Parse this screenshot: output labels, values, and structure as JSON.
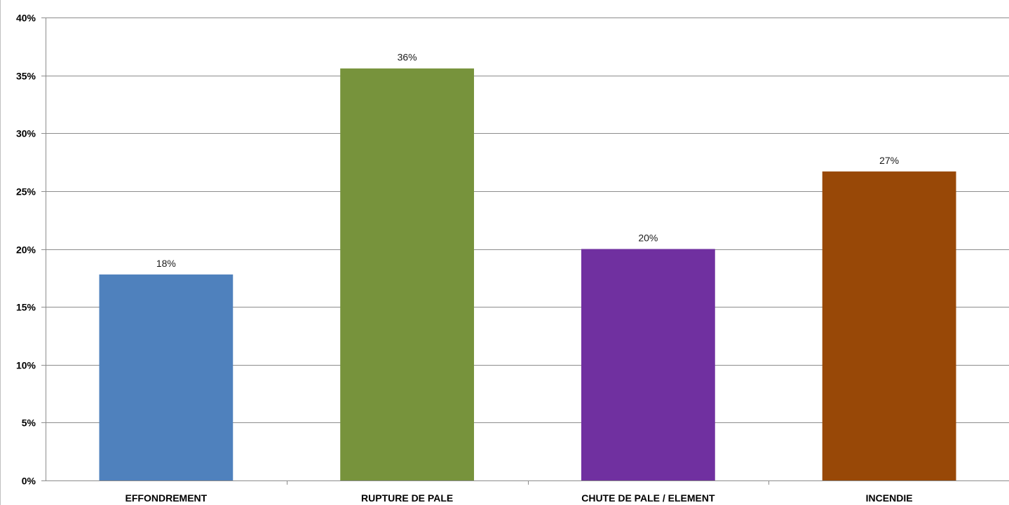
{
  "chart_data": {
    "type": "bar",
    "categories": [
      "EFFONDREMENT",
      "RUPTURE DE PALE",
      "CHUTE DE PALE / ELEMENT",
      "INCENDIE"
    ],
    "values": [
      17.8,
      35.6,
      20.0,
      26.7
    ],
    "data_labels": [
      "18%",
      "36%",
      "20%",
      "27%"
    ],
    "colors": [
      "#4f81bd",
      "#77933c",
      "#7030a0",
      "#984807"
    ],
    "ylim": [
      0,
      40
    ],
    "y_ticks": [
      0,
      5,
      10,
      15,
      20,
      25,
      30,
      35,
      40
    ],
    "y_tick_labels": [
      "0%",
      "5%",
      "10%",
      "15%",
      "20%",
      "25%",
      "30%",
      "35%",
      "40%"
    ],
    "grid": true,
    "legend": "none",
    "title": "",
    "xlabel": "",
    "ylabel": ""
  }
}
